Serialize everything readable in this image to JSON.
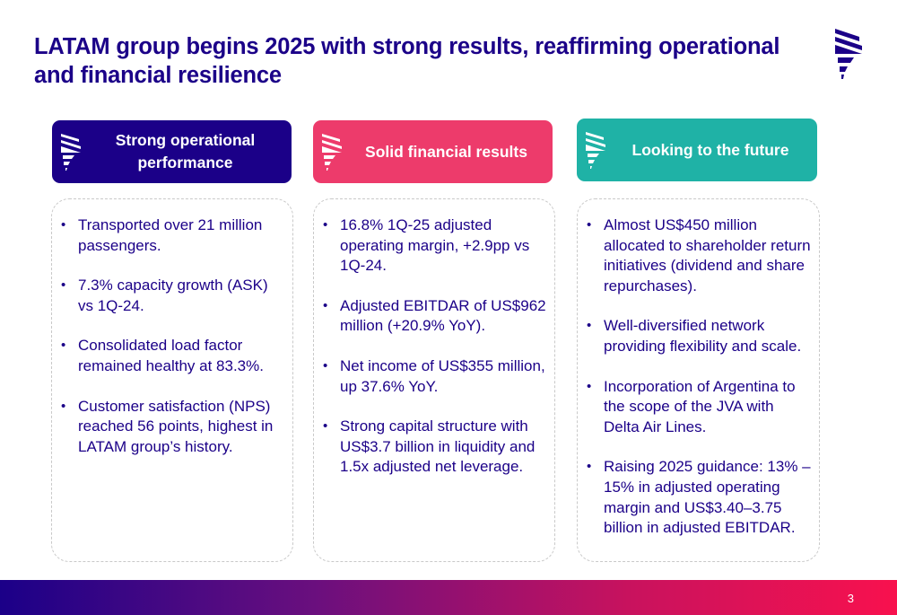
{
  "slide": {
    "title": "LATAM group begins 2025 with strong results, reaffirming operational and financial resilience",
    "page_number": "3",
    "logo_icon": "latam-logo-icon"
  },
  "colors": {
    "primary": "#1b0088",
    "pink": "#ed3b6b",
    "teal": "#1fb2a6",
    "footer_gradient": [
      "#1b0088",
      "#f8114e"
    ]
  },
  "columns": [
    {
      "header": "Strong operational performance",
      "icon": "latam-logo-icon",
      "bullets": [
        "Transported over 21 million passengers.",
        "7.3% capacity growth (ASK) vs 1Q-24.",
        "Consolidated load factor remained healthy at 83.3%.",
        "Customer satisfaction (NPS) reached 56 points, highest in LATAM group’s history."
      ]
    },
    {
      "header": "Solid financial results",
      "icon": "latam-logo-icon",
      "bullets": [
        "16.8% 1Q-25 adjusted operating margin, +2.9pp vs 1Q-24.",
        "Adjusted EBITDAR of US$962 million (+20.9% YoY).",
        "Net income of US$355 million, up 37.6% YoY.",
        "Strong capital structure with US$3.7 billion in liquidity and 1.5x adjusted net leverage."
      ]
    },
    {
      "header": "Looking to the future",
      "icon": "latam-logo-icon",
      "bullets": [
        "Almost US$450 million allocated to shareholder return initiatives (dividend and share repurchases).",
        "Well-diversified network providing flexibility and scale.",
        "Incorporation of Argentina to the scope of the JVA with Delta Air Lines.",
        "Raising 2025 guidance: 13% – 15% in adjusted operating margin and US$3.40–3.75 billion in adjusted EBITDAR."
      ]
    }
  ]
}
